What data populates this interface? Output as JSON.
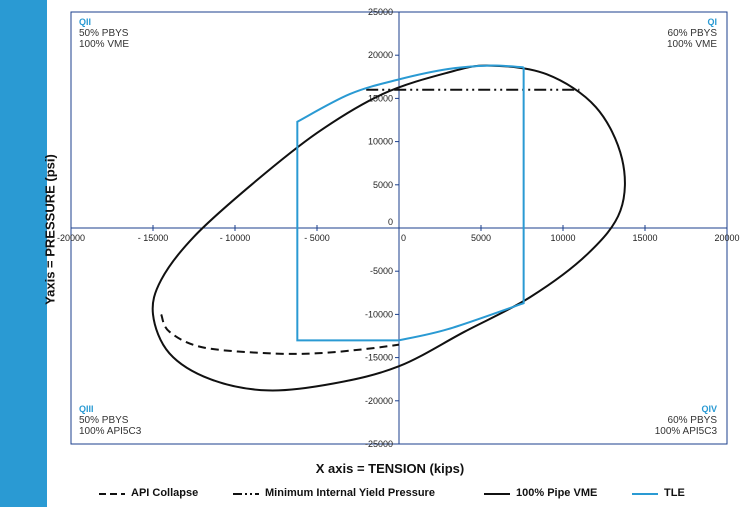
{
  "colors": {
    "accent": "#2a9ad3",
    "vme": "#111111",
    "tle": "#2a9ad3"
  },
  "quadrants": {
    "q2": {
      "title": "QII",
      "line1": "50% PBYS",
      "line2": "100% VME"
    },
    "q1": {
      "title": "QI",
      "line1": "60% PBYS",
      "line2": "100% VME"
    },
    "q3": {
      "title": "QIII",
      "line1": "50% PBYS",
      "line2": "100% API5C3"
    },
    "q4": {
      "title": "QIV",
      "line1": "60% PBYS",
      "line2": "100% API5C3"
    }
  },
  "axes": {
    "ylabel": "Yaxis = PRESSURE (psi)",
    "xlabel": "X axis = TENSION (kips)"
  },
  "legend": {
    "api_collapse": "API Collapse",
    "min_internal_yield": "Minimum Internal Yield Pressure",
    "pipe_vme": "100% Pipe VME",
    "tle": "TLE"
  },
  "chart_data": {
    "type": "line",
    "xlabel": "X axis = TENSION (kips)",
    "ylabel": "Yaxis = PRESSURE (psi)",
    "xlim": [
      -20000,
      20000
    ],
    "ylim": [
      -25000,
      25000
    ],
    "x_ticks": [
      "-20000",
      "- 15000",
      "- 10000",
      "- 5000",
      "0",
      "5000",
      "10000",
      "15000",
      "20000"
    ],
    "y_ticks": [
      "25000",
      "20000",
      "15000",
      "10000",
      "5000",
      "0",
      "-5000",
      "-10000",
      "-15000",
      "-20000",
      "-25000"
    ],
    "grid": false,
    "legend_position": "bottom",
    "series": [
      {
        "name": "100% Pipe VME",
        "style": "solid",
        "x": [
          5500,
          9000,
          12000,
          13600,
          13500,
          11500,
          8000,
          4000,
          0,
          -4000,
          -8000,
          -11500,
          -14000,
          -15000,
          -14500,
          -12500,
          -9000,
          -5000,
          -1000,
          3000
        ],
        "y": [
          18800,
          17800,
          14000,
          8000,
          2000,
          -3000,
          -8000,
          -12000,
          -16000,
          -18000,
          -18800,
          -17500,
          -14500,
          -10000,
          -6000,
          -1000,
          5000,
          11000,
          15500,
          18000
        ]
      },
      {
        "name": "API Collapse",
        "style": "dashed",
        "x": [
          -14500,
          -14000,
          -12000,
          -8000,
          -5000,
          -2000,
          0
        ],
        "y": [
          -10000,
          -12000,
          -13800,
          -14500,
          -14500,
          -14000,
          -13500
        ]
      },
      {
        "name": "Minimum Internal Yield Pressure",
        "style": "dash-dot",
        "x": [
          -2000,
          11000
        ],
        "y": [
          16000,
          16000
        ]
      },
      {
        "name": "TLE",
        "style": "solid",
        "x": [
          7600,
          7600,
          3000,
          0,
          -3000,
          -6200,
          -6200,
          -3000,
          0,
          3000,
          5500,
          7600
        ],
        "y": [
          18600,
          -8700,
          -11700,
          -13000,
          -13000,
          -13000,
          12300,
          15500,
          17200,
          18400,
          18800,
          18600
        ]
      }
    ]
  }
}
